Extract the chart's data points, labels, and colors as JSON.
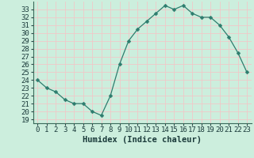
{
  "x": [
    0,
    1,
    2,
    3,
    4,
    5,
    6,
    7,
    8,
    9,
    10,
    11,
    12,
    13,
    14,
    15,
    16,
    17,
    18,
    19,
    20,
    21,
    22,
    23
  ],
  "y": [
    24.0,
    23.0,
    22.5,
    21.5,
    21.0,
    21.0,
    20.0,
    19.5,
    22.0,
    26.0,
    29.0,
    30.5,
    31.5,
    32.5,
    33.5,
    33.0,
    33.5,
    32.5,
    32.0,
    32.0,
    31.0,
    29.5,
    27.5,
    25.0
  ],
  "line_color": "#2d7d6e",
  "marker": "D",
  "marker_size": 2.5,
  "bg_color": "#cceedd",
  "grid_color": "#f0c8c8",
  "xlabel": "Humidex (Indice chaleur)",
  "ylabel_ticks": [
    19,
    20,
    21,
    22,
    23,
    24,
    25,
    26,
    27,
    28,
    29,
    30,
    31,
    32,
    33
  ],
  "ylim": [
    18.5,
    34.0
  ],
  "xlim": [
    -0.5,
    23.5
  ],
  "tick_label_fontsize": 6.5,
  "xlabel_fontsize": 7.5
}
